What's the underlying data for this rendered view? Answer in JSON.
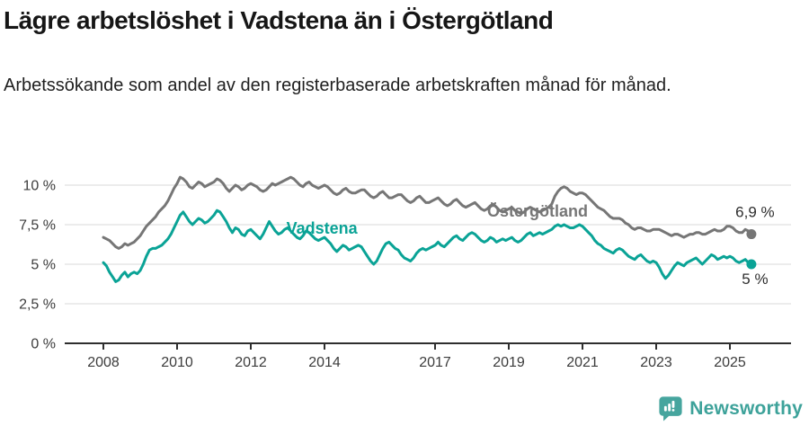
{
  "header": {
    "title": "Lägre arbetslöshet i Vadstena än i Östergötland",
    "subtitle": "Arbetssökande som andel av den registerbaserade arbetskraften månad för månad."
  },
  "footer": {
    "brand": "Newsworthy",
    "brand_color": "#3da29a",
    "logo_color": "#46a59e"
  },
  "chart_data": {
    "type": "line",
    "title": "Lägre arbetslöshet i Vadstena än i Östergötland",
    "xlabel": "",
    "ylabel": "",
    "x_unit": "month",
    "x_start_year": 2008,
    "points_per_year": 12,
    "x_end_label": "2025-08",
    "ylim": [
      0,
      11
    ],
    "grid": "horizontal",
    "gridline_color": "#d9d9d9",
    "axis_color": "#2e2e2e",
    "tick_label_color": "#3c3c3c",
    "yticks": [
      {
        "v": 0,
        "label": "0 %"
      },
      {
        "v": 2.5,
        "label": "2,5 %"
      },
      {
        "v": 5,
        "label": "5 %"
      },
      {
        "v": 7.5,
        "label": "7,5 %"
      },
      {
        "v": 10,
        "label": "10 %"
      }
    ],
    "xticks": [
      {
        "v": 2008,
        "label": "2008"
      },
      {
        "v": 2010,
        "label": "2010"
      },
      {
        "v": 2012,
        "label": "2012"
      },
      {
        "v": 2014,
        "label": "2014"
      },
      {
        "v": 2017,
        "label": "2017"
      },
      {
        "v": 2019,
        "label": "2019"
      },
      {
        "v": 2021,
        "label": "2021"
      },
      {
        "v": 2023,
        "label": "2023"
      },
      {
        "v": 2025,
        "label": "2025"
      }
    ],
    "series": [
      {
        "id": "ostergotland",
        "name": "Östergötland",
        "color": "#767676",
        "inline_label": {
          "text": "Östergötland",
          "x_year": 2019.78,
          "y_value": 8.0
        },
        "end_label": {
          "text": "6,9 %",
          "dx": 4,
          "dy": -19
        },
        "end_value": 6.9,
        "values": [
          6.7,
          6.6,
          6.5,
          6.3,
          6.1,
          6.0,
          6.1,
          6.3,
          6.2,
          6.3,
          6.4,
          6.6,
          6.8,
          7.1,
          7.4,
          7.6,
          7.8,
          8.0,
          8.3,
          8.5,
          8.7,
          9.0,
          9.4,
          9.8,
          10.1,
          10.5,
          10.4,
          10.2,
          9.9,
          9.8,
          10.0,
          10.2,
          10.1,
          9.9,
          10.0,
          10.1,
          10.2,
          10.4,
          10.3,
          10.1,
          9.8,
          9.6,
          9.8,
          10.0,
          9.9,
          9.7,
          9.8,
          10.0,
          10.1,
          10.0,
          9.9,
          9.7,
          9.6,
          9.7,
          9.9,
          10.1,
          10.0,
          10.1,
          10.2,
          10.3,
          10.4,
          10.5,
          10.4,
          10.2,
          10.0,
          9.9,
          10.1,
          10.2,
          10.0,
          9.9,
          9.8,
          9.9,
          10.0,
          9.9,
          9.7,
          9.5,
          9.4,
          9.5,
          9.7,
          9.8,
          9.6,
          9.5,
          9.5,
          9.6,
          9.7,
          9.7,
          9.5,
          9.3,
          9.2,
          9.3,
          9.5,
          9.6,
          9.4,
          9.2,
          9.2,
          9.3,
          9.4,
          9.4,
          9.2,
          9.0,
          8.9,
          9.0,
          9.2,
          9.3,
          9.1,
          8.9,
          8.9,
          9.0,
          9.1,
          9.2,
          9.0,
          8.8,
          8.7,
          8.8,
          9.0,
          9.1,
          8.9,
          8.7,
          8.6,
          8.7,
          8.8,
          8.9,
          8.7,
          8.5,
          8.4,
          8.5,
          8.7,
          8.8,
          8.6,
          8.4,
          8.3,
          8.4,
          8.5,
          8.6,
          8.4,
          8.3,
          8.2,
          8.3,
          8.5,
          8.6,
          8.5,
          8.4,
          8.3,
          8.4,
          8.5,
          8.6,
          8.8,
          9.3,
          9.6,
          9.8,
          9.9,
          9.8,
          9.6,
          9.5,
          9.4,
          9.5,
          9.5,
          9.4,
          9.2,
          9.0,
          8.8,
          8.6,
          8.5,
          8.4,
          8.2,
          8.0,
          7.9,
          7.9,
          7.9,
          7.8,
          7.6,
          7.5,
          7.3,
          7.2,
          7.3,
          7.3,
          7.2,
          7.1,
          7.1,
          7.2,
          7.2,
          7.2,
          7.1,
          7.0,
          6.9,
          6.8,
          6.9,
          6.9,
          6.8,
          6.7,
          6.8,
          6.9,
          6.9,
          7.0,
          7.0,
          6.9,
          6.9,
          7.0,
          7.1,
          7.2,
          7.1,
          7.1,
          7.2,
          7.4,
          7.4,
          7.3,
          7.1,
          7.0,
          7.0,
          7.2,
          7.1,
          6.9
        ]
      },
      {
        "id": "vadstena",
        "name": "Vadstena",
        "color": "#0aa396",
        "inline_label": {
          "text": "Vadstena",
          "x_year": 2013.93,
          "y_value": 6.93
        },
        "end_label": {
          "text": "5 %",
          "dx": 4,
          "dy": 22
        },
        "end_value": 5.0,
        "values": [
          5.1,
          4.9,
          4.5,
          4.2,
          3.9,
          4.0,
          4.3,
          4.5,
          4.2,
          4.4,
          4.5,
          4.4,
          4.6,
          5.0,
          5.5,
          5.9,
          6.0,
          6.0,
          6.1,
          6.2,
          6.4,
          6.6,
          6.9,
          7.3,
          7.7,
          8.1,
          8.3,
          8.0,
          7.7,
          7.5,
          7.7,
          7.9,
          7.8,
          7.6,
          7.7,
          7.9,
          8.1,
          8.4,
          8.3,
          8.0,
          7.7,
          7.3,
          7.0,
          7.3,
          7.2,
          6.9,
          6.8,
          7.1,
          7.2,
          7.0,
          6.8,
          6.6,
          6.9,
          7.3,
          7.7,
          7.4,
          7.1,
          6.9,
          7.0,
          7.2,
          7.3,
          7.1,
          6.9,
          6.7,
          6.6,
          6.8,
          7.1,
          7.0,
          6.8,
          6.6,
          6.5,
          6.6,
          6.7,
          6.5,
          6.3,
          6.0,
          5.8,
          6.0,
          6.2,
          6.1,
          5.9,
          6.0,
          6.1,
          6.2,
          6.1,
          5.8,
          5.5,
          5.2,
          5.0,
          5.2,
          5.6,
          6.0,
          6.3,
          6.4,
          6.2,
          6.0,
          5.9,
          5.6,
          5.4,
          5.3,
          5.2,
          5.4,
          5.7,
          5.9,
          6.0,
          5.9,
          6.0,
          6.1,
          6.2,
          6.4,
          6.2,
          6.1,
          6.3,
          6.5,
          6.7,
          6.8,
          6.6,
          6.5,
          6.7,
          6.9,
          7.0,
          6.9,
          6.7,
          6.5,
          6.4,
          6.5,
          6.7,
          6.6,
          6.4,
          6.5,
          6.6,
          6.5,
          6.6,
          6.7,
          6.5,
          6.4,
          6.5,
          6.7,
          6.9,
          7.0,
          6.8,
          6.9,
          7.0,
          6.9,
          7.0,
          7.1,
          7.2,
          7.4,
          7.5,
          7.4,
          7.5,
          7.4,
          7.3,
          7.3,
          7.4,
          7.5,
          7.4,
          7.2,
          7.0,
          6.8,
          6.5,
          6.3,
          6.2,
          6.0,
          5.9,
          5.8,
          5.7,
          5.9,
          6.0,
          5.9,
          5.7,
          5.5,
          5.4,
          5.3,
          5.5,
          5.6,
          5.4,
          5.2,
          5.1,
          5.2,
          5.1,
          4.8,
          4.4,
          4.1,
          4.3,
          4.6,
          4.9,
          5.1,
          5.0,
          4.9,
          5.1,
          5.2,
          5.3,
          5.4,
          5.2,
          5.0,
          5.2,
          5.4,
          5.6,
          5.5,
          5.3,
          5.4,
          5.5,
          5.4,
          5.5,
          5.4,
          5.2,
          5.1,
          5.2,
          5.3,
          5.1,
          5.0
        ]
      }
    ]
  }
}
